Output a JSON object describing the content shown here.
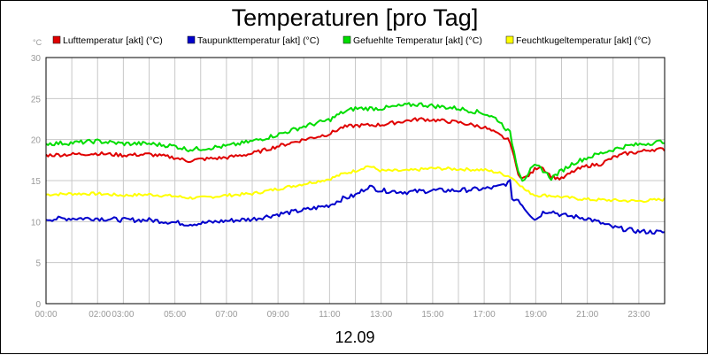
{
  "chart_data": {
    "type": "line",
    "title": "Temperaturen [pro Tag]",
    "ylabel": "°C",
    "xlabel": "12.09",
    "ylim": [
      0,
      30
    ],
    "xlim": [
      0,
      24
    ],
    "grid": true,
    "legend_position": "top",
    "yticks": [
      0,
      5,
      10,
      15,
      20,
      25,
      30
    ],
    "xticks": [
      {
        "label": "00:00",
        "t": 0
      },
      {
        "label": "02:00",
        "t": 2
      },
      {
        "label": "03:00",
        "t": 3
      },
      {
        "label": "05:00",
        "t": 5
      },
      {
        "label": "07:00",
        "t": 7
      },
      {
        "label": "09:00",
        "t": 9
      },
      {
        "label": "11:00",
        "t": 11
      },
      {
        "label": "13:00",
        "t": 13
      },
      {
        "label": "15:00",
        "t": 15
      },
      {
        "label": "17:00",
        "t": 17
      },
      {
        "label": "19:00",
        "t": 19
      },
      {
        "label": "21:00",
        "t": 21
      },
      {
        "label": "23:00",
        "t": 23
      }
    ],
    "series": [
      {
        "name": "Lufttemperatur [akt] (°C)",
        "color": "#e00000",
        "t": [
          0,
          1,
          2,
          3,
          4,
          5,
          5.5,
          6,
          7,
          8,
          9,
          10,
          11,
          11.5,
          12,
          13,
          14,
          14.5,
          15,
          16,
          17,
          17.5,
          18,
          18.3,
          18.5,
          18.8,
          19,
          19.2,
          19.6,
          20,
          20.5,
          21,
          21.5,
          22,
          22.5,
          23,
          23.5,
          24
        ],
        "values": [
          18.1,
          18.2,
          18.3,
          18.1,
          18.2,
          17.8,
          17.4,
          17.6,
          17.8,
          18.3,
          19.2,
          20.0,
          20.7,
          21.5,
          21.7,
          21.8,
          22.3,
          22.5,
          22.4,
          22.1,
          21.5,
          20.7,
          19.8,
          16.0,
          15.2,
          15.8,
          16.5,
          16.8,
          15.5,
          15.2,
          16.2,
          16.8,
          17.0,
          17.8,
          18.3,
          18.5,
          18.8,
          18.8
        ]
      },
      {
        "name": "Taupunkttemperatur [akt] (°C)",
        "color": "#0000cc",
        "t": [
          0,
          1,
          2,
          3,
          4,
          5,
          5.5,
          6,
          7,
          8,
          9,
          10,
          11,
          11.5,
          12,
          12.5,
          13,
          14,
          15,
          16,
          17,
          17.5,
          18,
          18.1,
          18.3,
          18.6,
          19,
          19.3,
          19.6,
          20,
          21,
          22,
          23,
          24
        ],
        "values": [
          10.3,
          10.4,
          10.4,
          10.2,
          10.2,
          9.9,
          9.7,
          9.8,
          10.1,
          10.3,
          10.9,
          11.4,
          12.0,
          12.8,
          13.2,
          14.3,
          13.8,
          13.6,
          13.8,
          13.8,
          14.0,
          14.2,
          14.8,
          12.5,
          12.8,
          11.5,
          10.2,
          11.2,
          11.3,
          10.8,
          10.4,
          9.3,
          8.8,
          8.7
        ]
      },
      {
        "name": "Gefuehlte Temperatur [akt] (°C)",
        "color": "#00dd00",
        "t": [
          0,
          1,
          2,
          3,
          4,
          5,
          5.5,
          6,
          7,
          8,
          9,
          10,
          11,
          11.5,
          12,
          13,
          14,
          14.5,
          15,
          16,
          17,
          17.5,
          18,
          18.3,
          18.5,
          18.8,
          19,
          19.2,
          19.6,
          20,
          20.5,
          21,
          21.5,
          22,
          22.5,
          23,
          23.5,
          24
        ],
        "values": [
          19.5,
          19.6,
          19.8,
          19.5,
          19.5,
          19.2,
          18.8,
          18.9,
          19.2,
          19.8,
          20.6,
          21.6,
          22.4,
          23.3,
          23.8,
          23.8,
          24.2,
          24.3,
          24.1,
          23.8,
          23.2,
          22.5,
          20.8,
          16.5,
          15.0,
          16.3,
          16.8,
          16.5,
          15.3,
          16.2,
          17.2,
          17.8,
          18.3,
          18.8,
          19.2,
          19.4,
          19.6,
          19.8
        ]
      },
      {
        "name": "Feuchtkugeltemperatur [akt] (°C)",
        "color": "#ffff00",
        "t": [
          0,
          1,
          2,
          3,
          4,
          5,
          5.5,
          6,
          7,
          8,
          9,
          10,
          11,
          11.5,
          12,
          12.5,
          13,
          14,
          15,
          16,
          17,
          17.5,
          18,
          18.3,
          18.6,
          19,
          19.5,
          20,
          21,
          22,
          23,
          24
        ],
        "values": [
          13.3,
          13.4,
          13.4,
          13.2,
          13.3,
          13.1,
          12.9,
          12.9,
          13.2,
          13.4,
          14.0,
          14.6,
          15.2,
          15.8,
          16.2,
          16.8,
          16.2,
          16.2,
          16.5,
          16.4,
          16.3,
          16.0,
          15.5,
          14.8,
          13.8,
          13.2,
          13.2,
          13.0,
          12.7,
          12.6,
          12.5,
          12.7
        ]
      }
    ]
  }
}
